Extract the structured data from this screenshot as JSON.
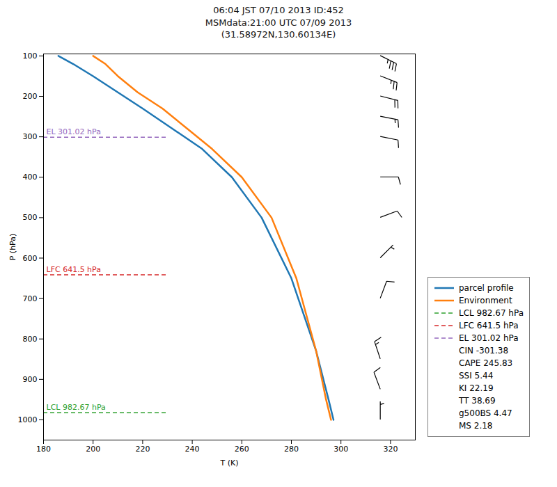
{
  "chart_data": {
    "type": "line",
    "title": "06:04 JST 07/10 2013  ID:452\nMSMdata:21:00 UTC 07/09 2013\n(31.58972N,130.60134E)",
    "xlabel": "T (K)",
    "ylabel": "P (hPa)",
    "xlim": [
      180,
      330
    ],
    "ylim": [
      1050,
      95
    ],
    "xticks": [
      180,
      200,
      220,
      240,
      260,
      280,
      300,
      320
    ],
    "yticks": [
      100,
      200,
      300,
      400,
      500,
      600,
      700,
      800,
      900,
      1000
    ],
    "grid": false,
    "legend": "lower right",
    "series": [
      {
        "name": "parcel profile",
        "color": "#1f77b4",
        "x": [
          186,
          192,
          200,
          210,
          220,
          232,
          244,
          256,
          268,
          280,
          290,
          295,
          297
        ],
        "y": [
          100,
          120,
          150,
          190,
          230,
          280,
          330,
          400,
          500,
          650,
          830,
          950,
          1000
        ]
      },
      {
        "name": "Environment",
        "color": "#ff7f0e",
        "x": [
          200,
          205,
          210,
          218,
          228,
          238,
          248,
          260,
          272,
          282,
          290,
          294,
          296
        ],
        "y": [
          100,
          120,
          150,
          190,
          230,
          280,
          330,
          400,
          500,
          650,
          830,
          950,
          1000
        ]
      }
    ],
    "level_x": [
      180,
      230
    ],
    "levels": [
      {
        "name": "LCL 982.67 hPa",
        "value": 982.67,
        "color": "#2ca02c",
        "line_style": "dashed"
      },
      {
        "name": "LFC 641.5 hPa",
        "value": 641.5,
        "color": "#d62728",
        "line_style": "dashed"
      },
      {
        "name": "EL 301.02 hPa",
        "value": 301.02,
        "color": "#9467bd",
        "line_style": "dashed"
      }
    ],
    "legend_notes": [
      "CIN -301.38",
      "CAPE 245.83",
      "SSI 5.44",
      "KI 22.19",
      "TT 38.69",
      "g500BS 4.47",
      "MS 2.18"
    ],
    "wind_barbs": {
      "x": 316,
      "points": [
        {
          "p": 100,
          "u": -30,
          "v": 15
        },
        {
          "p": 150,
          "u": -25,
          "v": 10
        },
        {
          "p": 200,
          "u": -20,
          "v": 5
        },
        {
          "p": 250,
          "u": -15,
          "v": 3
        },
        {
          "p": 300,
          "u": -10,
          "v": 2
        },
        {
          "p": 400,
          "u": -8,
          "v": 0
        },
        {
          "p": 500,
          "u": -8,
          "v": -3
        },
        {
          "p": 600,
          "u": -5,
          "v": -5
        },
        {
          "p": 700,
          "u": -3,
          "v": -8
        },
        {
          "p": 850,
          "u": 5,
          "v": -15
        },
        {
          "p": 925,
          "u": 3,
          "v": -8
        },
        {
          "p": 1000,
          "u": 0,
          "v": -3
        }
      ]
    }
  }
}
